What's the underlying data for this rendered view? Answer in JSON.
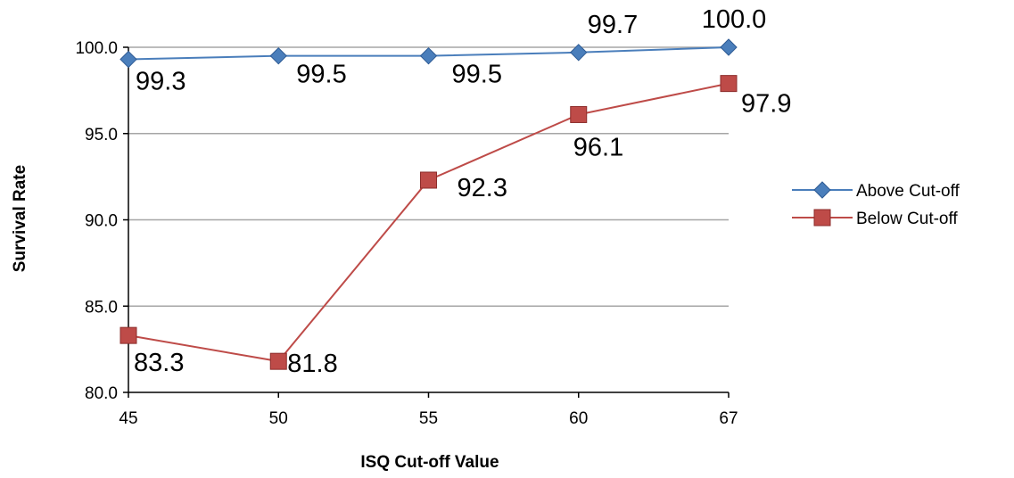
{
  "chart_data": {
    "type": "line",
    "title": "",
    "xlabel": "ISQ Cut-off Value",
    "ylabel": "Survival Rate",
    "categories": [
      "45",
      "50",
      "55",
      "60",
      "67"
    ],
    "ylim": [
      80,
      100
    ],
    "yticks": [
      "80.0",
      "85.0",
      "90.0",
      "95.0",
      "100.0"
    ],
    "grid": true,
    "legend_position": "right",
    "series": [
      {
        "name": "Above Cut-off",
        "values": [
          99.3,
          99.5,
          99.5,
          99.7,
          100.0
        ],
        "labels": [
          "99.3",
          "99.5",
          "99.5",
          "99.7",
          "100.0"
        ],
        "color": "#4a7ebb",
        "marker": "diamond"
      },
      {
        "name": "Below Cut-off",
        "values": [
          83.3,
          81.8,
          92.3,
          96.1,
          97.9
        ],
        "labels": [
          "83.3",
          "81.8",
          "92.3",
          "96.1",
          "97.9"
        ],
        "color": "#be4b48",
        "marker": "square"
      }
    ]
  }
}
